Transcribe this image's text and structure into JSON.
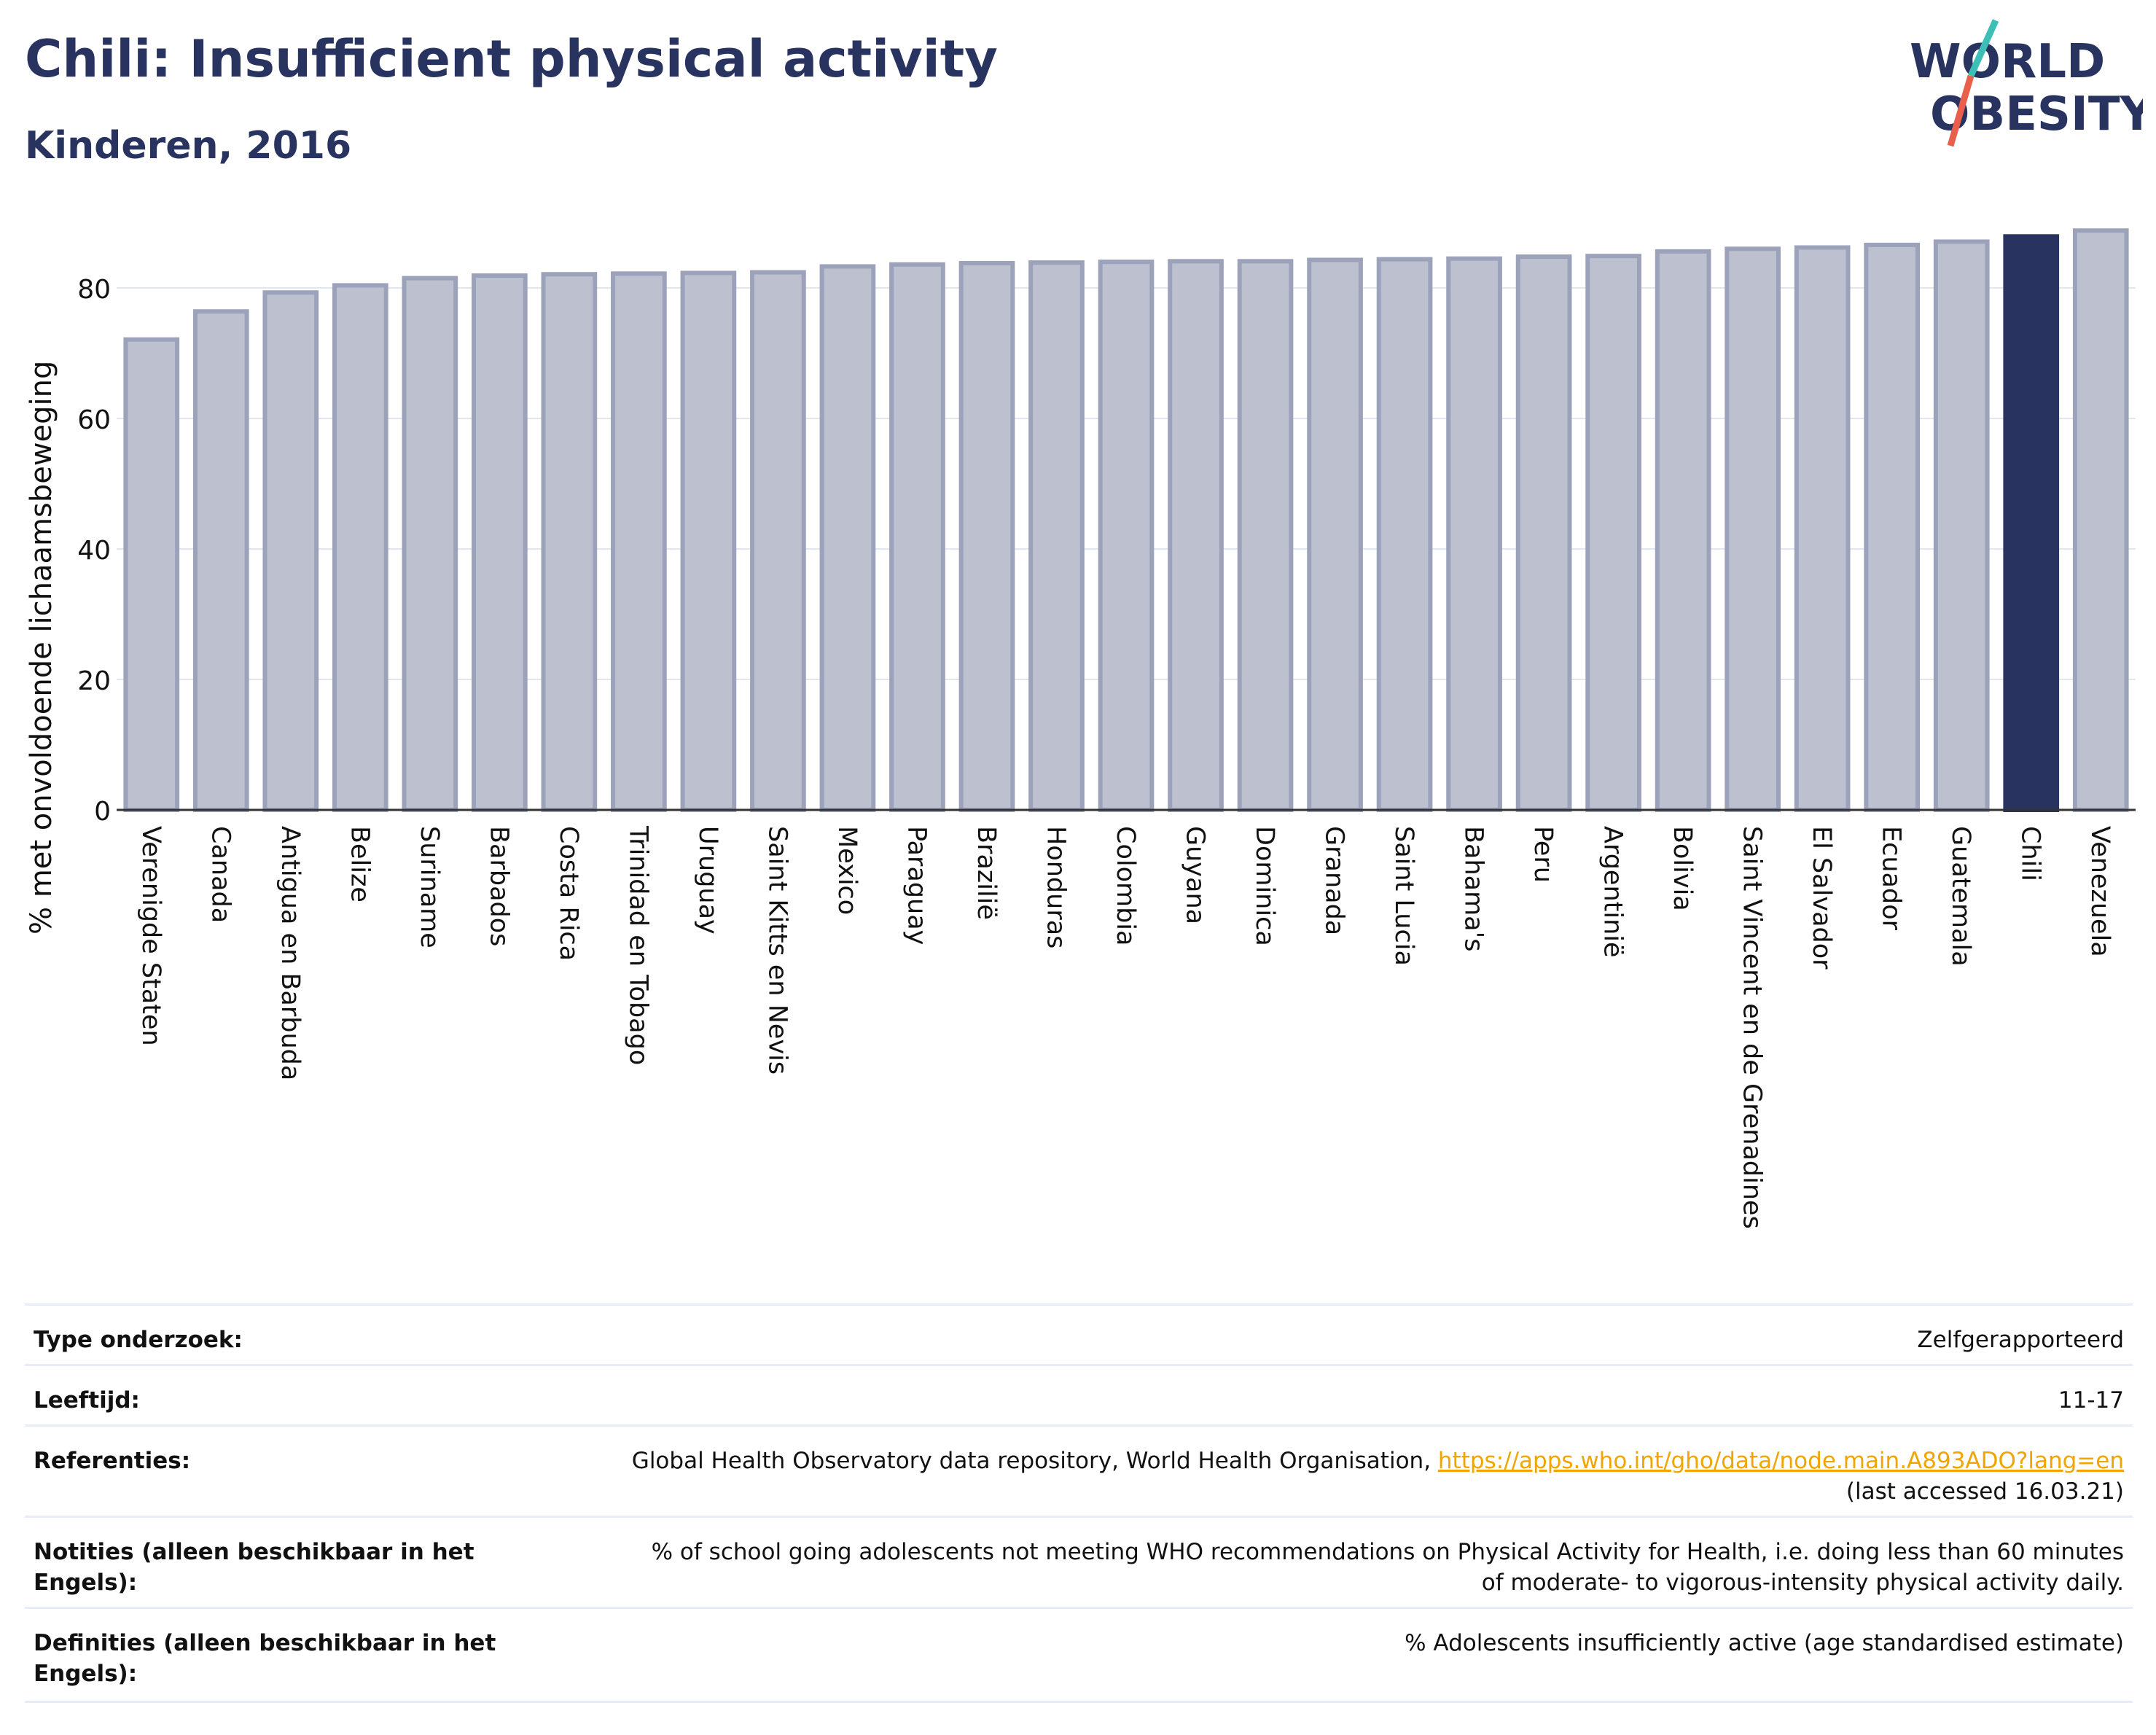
{
  "header": {
    "title": "Chili: Insufficient physical activity",
    "subtitle": "Kinderen, 2016"
  },
  "logo": {
    "line1": "WORLD",
    "line2": "OBESITY",
    "name": "world-obesity-logo"
  },
  "colors": {
    "highlight": "#283360",
    "bar": "#bcc0cf",
    "bar_border": "#9ca2b9",
    "accent_red": "#e8604c",
    "accent_teal": "#3dbfb8"
  },
  "chart_data": {
    "type": "bar",
    "ylabel": "% met onvoldoende lichaamsbeweging",
    "xlabel": "",
    "ylim": [
      0,
      90
    ],
    "yticks": [
      0,
      20,
      40,
      60,
      80
    ],
    "grid": true,
    "highlight_category": "Chili",
    "categories": [
      "Verenigde Staten",
      "Canada",
      "Antigua en Barbuda",
      "Belize",
      "Suriname",
      "Barbados",
      "Costa Rica",
      "Trinidad en Tobago",
      "Uruguay",
      "Saint Kitts en Nevis",
      "Mexico",
      "Paraguay",
      "Brazilië",
      "Honduras",
      "Colombia",
      "Guyana",
      "Dominica",
      "Granada",
      "Saint Lucia",
      "Bahama's",
      "Peru",
      "Argentinië",
      "Bolivia",
      "Saint Vincent en de Grenadines",
      "El Salvador",
      "Ecuador",
      "Guatemala",
      "Chili",
      "Venezuela"
    ],
    "values": [
      72.1,
      76.4,
      79.3,
      80.4,
      81.5,
      81.9,
      82.1,
      82.2,
      82.3,
      82.4,
      83.3,
      83.6,
      83.8,
      83.9,
      84.0,
      84.1,
      84.1,
      84.3,
      84.4,
      84.5,
      84.8,
      84.9,
      85.6,
      86.0,
      86.2,
      86.6,
      87.1,
      87.9,
      88.8
    ]
  },
  "table": {
    "rows": [
      {
        "label": "Type onderzoek:",
        "value": "Zelfgerapporteerd"
      },
      {
        "label": "Leeftijd:",
        "value": "11-17"
      },
      {
        "label": "Referenties:",
        "value": "Global Health Observatory data repository, World Health Organisation, ",
        "link": "https://apps.who.int/gho/data/node.main.A893ADO?lang=en",
        "value2": "(last accessed 16.03.21)"
      },
      {
        "label": "Notities (alleen beschikbaar in het Engels):",
        "value": "% of school going adolescents not meeting WHO recommendations on Physical Activity for Health, i.e. doing less than 60 minutes of moderate- to vigorous-intensity physical activity daily."
      },
      {
        "label": "Definities (alleen beschikbaar in het Engels):",
        "value": "% Adolescents insufficiently active (age standardised estimate)"
      }
    ]
  }
}
